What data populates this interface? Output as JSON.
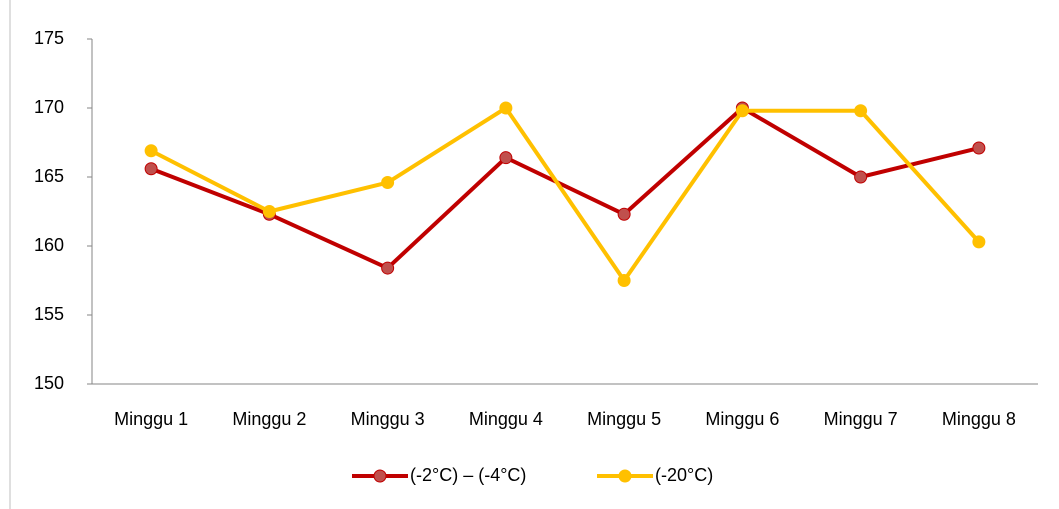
{
  "chart_data": {
    "type": "line",
    "categories": [
      "Minggu 1",
      "Minggu 2",
      "Minggu 3",
      "Minggu 4",
      "Minggu 5",
      "Minggu 6",
      "Minggu 7",
      "Minggu 8"
    ],
    "series": [
      {
        "name": "(-2°C) – (-4°C)",
        "color": "#c00000",
        "marker_color": "#c0504d",
        "values": [
          165.6,
          162.3,
          158.4,
          166.4,
          162.3,
          170,
          165,
          167.1
        ]
      },
      {
        "name": "(-20°C)",
        "color": "#ffc000",
        "marker_color": "#ffc000",
        "values": [
          166.9,
          162.5,
          164.6,
          170,
          157.5,
          169.8,
          169.8,
          160.3
        ]
      }
    ],
    "ylim": [
      150,
      175
    ],
    "yticks": [
      150,
      155,
      160,
      165,
      170,
      175
    ],
    "grid": false,
    "legend": "bottom"
  }
}
